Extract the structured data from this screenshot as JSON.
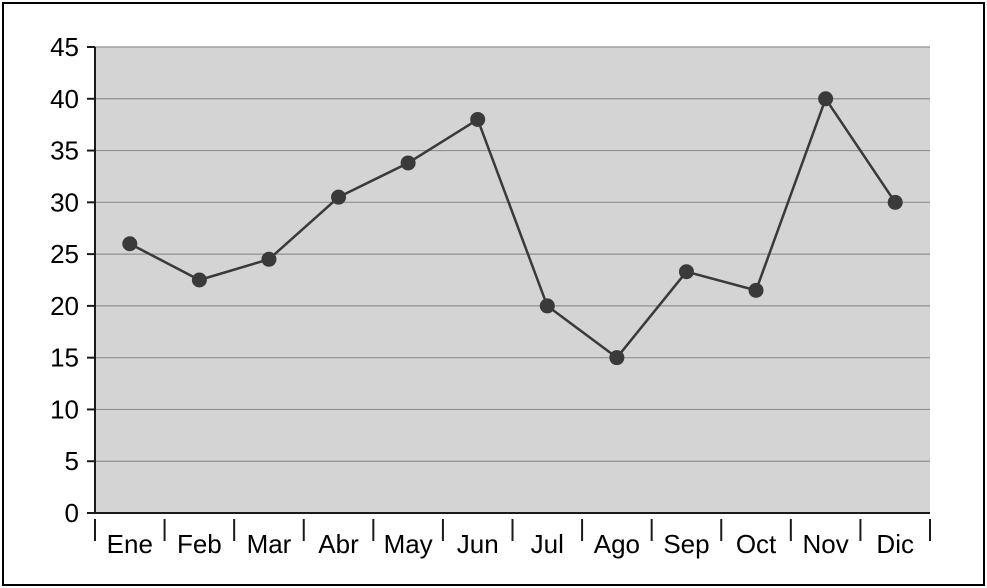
{
  "chart_data": {
    "type": "line",
    "title": "",
    "xlabel": "",
    "ylabel": "",
    "categories": [
      "Ene",
      "Feb",
      "Mar",
      "Abr",
      "May",
      "Jun",
      "Jul",
      "Ago",
      "Sep",
      "Oct",
      "Nov",
      "Dic"
    ],
    "values": [
      26,
      22.5,
      24.5,
      30.5,
      33.8,
      38,
      20,
      15,
      23.3,
      21.5,
      40,
      30
    ],
    "ylim": [
      0,
      45
    ],
    "yticks": [
      0,
      5,
      10,
      15,
      20,
      25,
      30,
      35,
      40,
      45
    ],
    "grid": "horizontal",
    "legend": "none",
    "colors": {
      "plot_background": "#d4d4d4",
      "grid_line": "#909090",
      "series_line": "#3a3a3a",
      "marker": "#3a3a3a",
      "axis": "#1a1a1a",
      "frame_border": "#000000",
      "page_background": "#ffffff"
    }
  }
}
